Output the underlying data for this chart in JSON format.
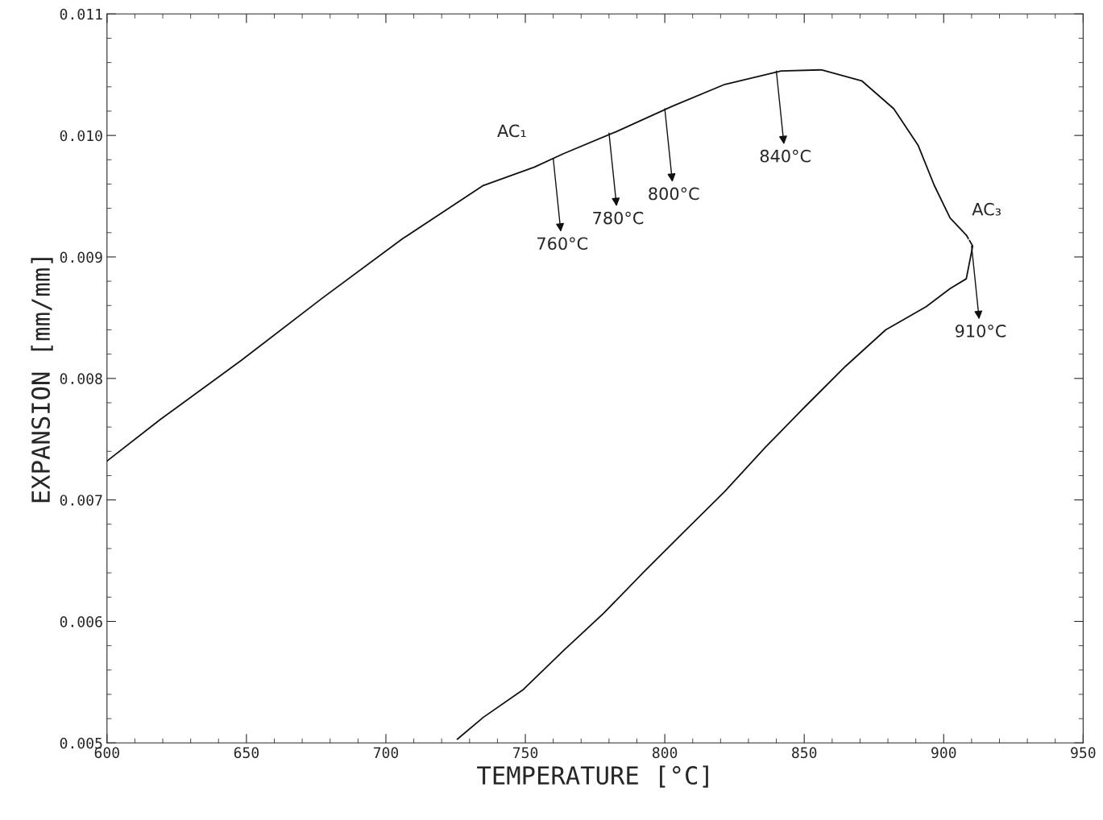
{
  "chart_data": {
    "type": "line",
    "xlabel": "TEMPERATURE [°C]",
    "ylabel": "EXPANSION [mm/mm]",
    "series": [
      {
        "color": "#111111",
        "x": [
          600,
          619.3,
          648.2,
          677.1,
          706,
          734.9,
          753.3,
          763.7,
          782.5,
          802.7,
          821.5,
          841.7,
          856.1,
          870.6,
          882.1,
          890.8,
          896.6,
          902.3,
          908.1,
          910.4,
          908.1,
          902.3,
          893.7,
          879.2,
          864.8,
          850.4,
          835.9,
          821.5,
          807.0,
          792.6,
          778.2,
          763.7,
          749.3,
          734.9,
          725.6
        ],
        "values": [
          0.00732,
          0.007665,
          0.008149,
          0.008659,
          0.00915,
          0.009588,
          0.00974,
          0.00985,
          0.01003,
          0.01024,
          0.01042,
          0.01053,
          0.01054,
          0.01045,
          0.01022,
          0.00992,
          0.00959,
          0.00932,
          0.00918,
          0.00909,
          0.00882,
          0.00874,
          0.00859,
          0.0084,
          0.0081,
          0.00777,
          0.00743,
          0.00707,
          0.00674,
          0.00641,
          0.00607,
          0.00576,
          0.00544,
          0.00521,
          0.00503
        ]
      }
    ],
    "annotations": [
      {
        "text": "AC₁",
        "x": 750,
        "y": 0.00973
      },
      {
        "text": "AC₃",
        "x": 909,
        "y": 0.00914
      },
      {
        "text": "760°C",
        "x": 760,
        "y": 0.00981
      },
      {
        "text": "780°C",
        "x": 780,
        "y": 0.01002
      },
      {
        "text": "800°C",
        "x": 800,
        "y": 0.01022
      },
      {
        "text": "840°C",
        "x": 840,
        "y": 0.01053
      },
      {
        "text": "910°C",
        "x": 910,
        "y": 0.00909
      }
    ],
    "xlim": [
      600,
      950
    ],
    "ylim": [
      0.005,
      0.011
    ],
    "xticks": [
      600,
      650,
      700,
      750,
      800,
      850,
      900,
      950
    ],
    "yticks": [
      0.005,
      0.006,
      0.007,
      0.008,
      0.009,
      {
        "value": 0.01,
        "label": "0.010"
      },
      0.011
    ],
    "grid": false,
    "legend": false
  }
}
